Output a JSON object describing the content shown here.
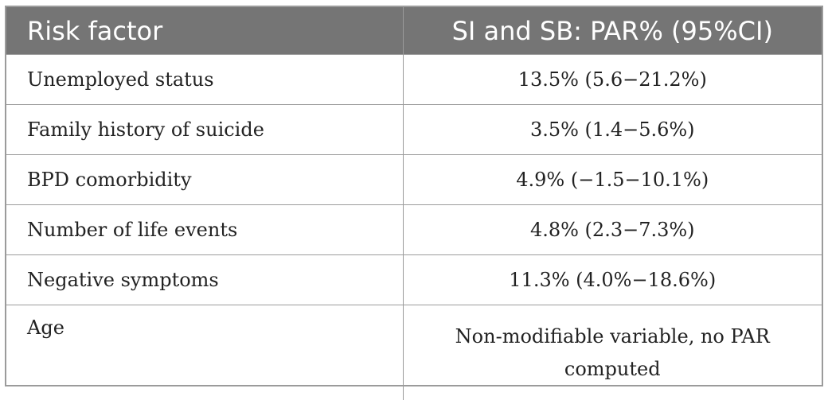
{
  "table": {
    "headers": [
      "Risk factor",
      "SI and SB: PAR% (95%CI)"
    ],
    "rows": [
      {
        "factor": "Unemployed status",
        "par": "13.5% (5.6−21.2%)"
      },
      {
        "factor": "Family history of suicide",
        "par": "3.5% (1.4−5.6%)"
      },
      {
        "factor": "BPD comorbidity",
        "par": "4.9% (−1.5−10.1%)"
      },
      {
        "factor": "Number of life events",
        "par": "4.8% (2.3−7.3%)"
      },
      {
        "factor": "Negative symptoms",
        "par": "11.3% (4.0%−18.6%)"
      },
      {
        "factor": "Age",
        "par": "Non-modifiable variable, no PAR computed"
      }
    ]
  },
  "colors": {
    "header_bg": "#757575",
    "header_text": "#ffffff",
    "border": "#9b9b9b"
  }
}
